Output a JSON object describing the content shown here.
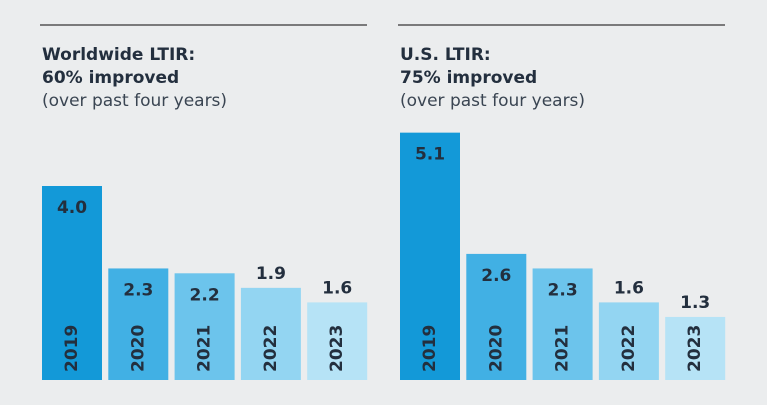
{
  "chart_data": [
    {
      "type": "bar",
      "title": "Worldwide LTIR:",
      "subtitle": "60% improved",
      "note": "(over past four years)",
      "categories": [
        "2019",
        "2020",
        "2021",
        "2022",
        "2023"
      ],
      "values": [
        4.0,
        2.3,
        2.2,
        1.9,
        1.6
      ],
      "value_labels": [
        "4.0",
        "2.3",
        "2.2",
        "1.9",
        "1.6"
      ],
      "colors": [
        "#1399d8",
        "#41b0e4",
        "#6cc4ec",
        "#93d5f2",
        "#b6e3f6"
      ]
    },
    {
      "type": "bar",
      "title": "U.S. LTIR:",
      "subtitle": "75% improved",
      "note": "(over past four years)",
      "categories": [
        "2019",
        "2020",
        "2021",
        "2022",
        "2023"
      ],
      "values": [
        5.1,
        2.6,
        2.3,
        1.6,
        1.3
      ],
      "value_labels": [
        "5.1",
        "2.6",
        "2.3",
        "1.6",
        "1.3"
      ],
      "colors": [
        "#1399d8",
        "#41b0e4",
        "#6cc4ec",
        "#93d5f2",
        "#b6e3f6"
      ]
    }
  ]
}
